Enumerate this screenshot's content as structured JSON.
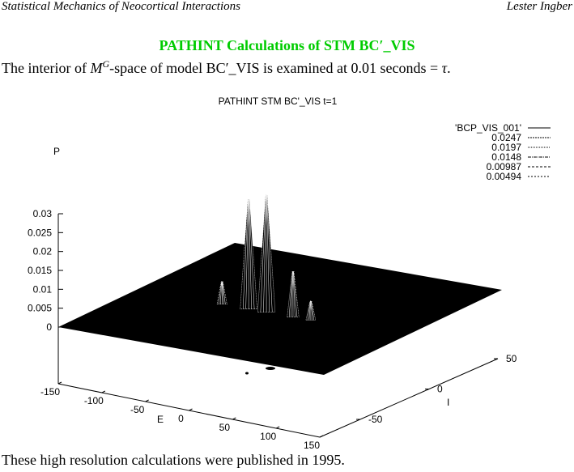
{
  "header": {
    "left": "Statistical Mechanics of Neocortical Interactions",
    "right": "Lester Ingber"
  },
  "section_title": "PATHINT Calculations of STM BC′_VIS",
  "intro": {
    "part1": "The interior of ",
    "math_M": "M",
    "math_sup": "G",
    "part2": "-space of model BC′_VIS is examined at 0.01 seconds = ",
    "math_tau": "τ",
    "part3": "."
  },
  "chart_data": {
    "type": "surface",
    "title": "PATHINT STM BC'_VIS t=1",
    "zlabel": "P",
    "xlabel": "E",
    "ylabel": "I",
    "z_ticks": [
      "0.03",
      "0.025",
      "0.02",
      "0.015",
      "0.01",
      "0.005",
      "0"
    ],
    "x_ticks": [
      "-150",
      "-100",
      "-50",
      "0",
      "50",
      "100",
      "150"
    ],
    "y_ticks": [
      "50",
      "0",
      "-50"
    ],
    "zlim": [
      0,
      0.03
    ],
    "xlim": [
      -150,
      150
    ],
    "ylim": [
      -50,
      50
    ],
    "legend_position": "top-right",
    "legend": [
      {
        "label": "'BCP_VIS_001'",
        "dash": "none"
      },
      {
        "label": "0.0247",
        "dash": "2,1"
      },
      {
        "label": "0.0197",
        "dash": "1,1"
      },
      {
        "label": "0.0148",
        "dash": "4,1,1,1"
      },
      {
        "label": "0.00987",
        "dash": "3,2"
      },
      {
        "label": "0.00494",
        "dash": "2,2"
      }
    ],
    "peaks": [
      {
        "E": -25,
        "I": -5,
        "P": 0.029
      },
      {
        "E": -5,
        "I": -5,
        "P": 0.031
      },
      {
        "E": 25,
        "I": -5,
        "P": 0.012
      },
      {
        "E": -55,
        "I": -5,
        "P": 0.006
      },
      {
        "E": 45,
        "I": -5,
        "P": 0.005
      }
    ]
  },
  "footer": "These high resolution calculations were published in 1995."
}
